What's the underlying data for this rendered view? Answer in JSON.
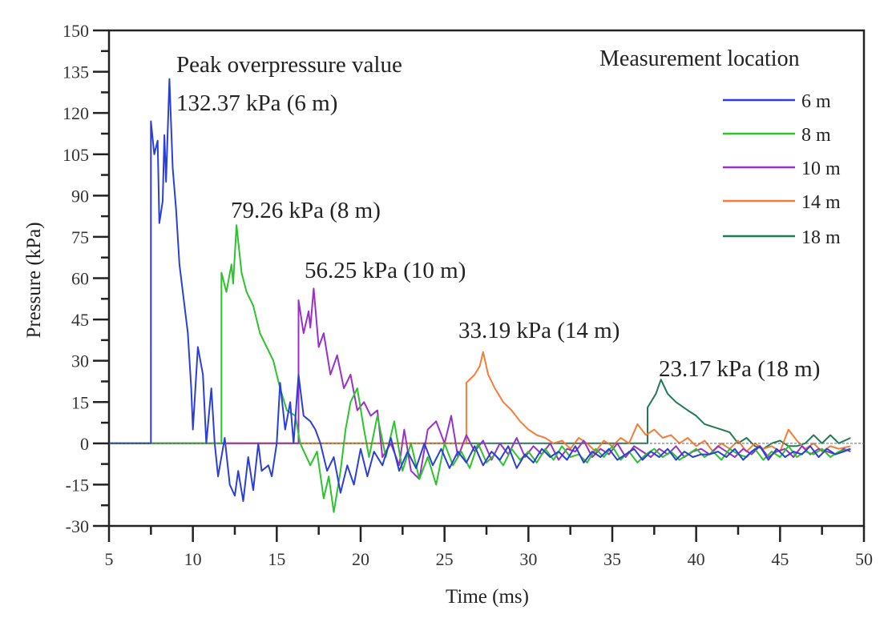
{
  "chart_data": {
    "type": "line",
    "xlabel": "Time (ms)",
    "ylabel": "Pressure (kPa)",
    "xlim": [
      5,
      50
    ],
    "ylim": [
      -30,
      150
    ],
    "xticks": [
      5,
      10,
      15,
      20,
      25,
      30,
      35,
      40,
      45,
      50
    ],
    "yticks": [
      -30,
      -15,
      0,
      15,
      30,
      45,
      60,
      75,
      90,
      105,
      120,
      135,
      150
    ],
    "grid": false,
    "legend": {
      "title": "Measurement location",
      "placement": "top-right"
    },
    "annotations": [
      {
        "text": "Peak overpressure value"
      },
      {
        "text": "132.37 kPa (6 m)"
      },
      {
        "text": "79.26 kPa (8 m)"
      },
      {
        "text": "56.25 kPa (10 m)"
      },
      {
        "text": "33.19 kPa (14 m)"
      },
      {
        "text": "23.17 kPa (18 m)"
      }
    ],
    "series": [
      {
        "name": "6 m",
        "color": "#2b3fd6",
        "x": [
          5,
          7.5,
          7.5,
          7.7,
          7.9,
          8.0,
          8.2,
          8.3,
          8.4,
          8.6,
          8.8,
          9.0,
          9.2,
          9.5,
          9.7,
          9.9,
          10.0,
          10.3,
          10.6,
          10.8,
          11.1,
          11.3,
          11.5,
          11.9,
          12.2,
          12.5,
          12.7,
          13.0,
          13.3,
          13.6,
          13.9,
          14.1,
          14.5,
          14.7,
          15.0,
          15.2,
          15.5,
          15.8,
          16.0,
          16.3,
          16.6,
          17.0,
          17.3,
          17.6,
          18.0,
          18.4,
          18.8,
          19.2,
          19.6,
          20.0,
          20.4,
          20.8,
          21.3,
          21.8,
          22.3,
          22.8,
          23.3,
          23.8,
          24.3,
          24.8,
          25.3,
          25.8,
          26.3,
          26.8,
          27.3,
          27.8,
          28.3,
          28.8,
          29.3,
          29.8,
          30.3,
          30.8,
          31.3,
          31.8,
          32.3,
          32.8,
          33.3,
          33.8,
          34.3,
          34.8,
          35.3,
          35.8,
          36.3,
          36.8,
          37.3,
          37.8,
          38.3,
          38.8,
          39.3,
          39.8,
          40.3,
          40.8,
          41.3,
          41.8,
          42.3,
          42.8,
          43.3,
          43.8,
          44.3,
          44.8,
          45.3,
          45.8,
          46.3,
          46.8,
          47.3,
          47.8,
          48.3,
          48.8,
          49.2
        ],
        "y": [
          0,
          0,
          117,
          105,
          110,
          80,
          88,
          112,
          95,
          132.37,
          100,
          85,
          65,
          50,
          40,
          20,
          5,
          35,
          25,
          0,
          20,
          0,
          -12,
          2,
          -15,
          -19,
          -10,
          -21,
          -5,
          -17,
          0,
          -10,
          -8,
          -12,
          0,
          22,
          5,
          15,
          0,
          25,
          10,
          8,
          5,
          0,
          -10,
          -5,
          -18,
          -8,
          -15,
          -2,
          -12,
          -3,
          -8,
          2,
          -10,
          -3,
          -9,
          0,
          -8,
          -2,
          -9,
          -3,
          -7,
          -1,
          -8,
          -3,
          -6,
          -1,
          -9,
          -4,
          -7,
          -2,
          -5,
          -3,
          -6,
          -1,
          -7,
          -3,
          -5,
          -2,
          -6,
          -4,
          -2,
          -6,
          -3,
          -5,
          -2,
          -6,
          -3,
          -5,
          -4,
          -4,
          -3,
          -5,
          -2,
          -6,
          -3,
          -1,
          -6,
          -2,
          -5,
          -3,
          -4,
          -1,
          -5,
          -2,
          -4,
          -3,
          -2
        ]
      },
      {
        "name": "8 m",
        "color": "#2bc42b",
        "x": [
          5,
          11.7,
          11.7,
          12.0,
          12.3,
          12.4,
          12.6,
          12.9,
          13.2,
          13.6,
          14.0,
          14.4,
          14.8,
          15.2,
          15.6,
          16.1,
          16.4,
          17.0,
          17.4,
          17.8,
          18.1,
          18.4,
          18.8,
          19.1,
          19.4,
          19.8,
          20.2,
          20.5,
          21.0,
          21.5,
          22.0,
          22.5,
          23.0,
          23.5,
          24.0,
          24.5,
          25.0,
          25.5,
          26.0,
          26.5,
          27.0,
          27.5,
          28.0,
          28.5,
          29.0,
          29.5,
          30.0,
          30.5,
          31.0,
          31.5,
          32.0,
          32.5,
          33.0,
          33.5,
          34.0,
          34.5,
          35.0,
          35.5,
          36.0,
          36.5,
          37.0,
          37.5,
          38.0,
          38.5,
          39.0,
          39.5,
          40.0,
          40.5,
          41.0,
          41.5,
          42.0,
          42.5,
          43.0,
          43.5,
          44.0,
          44.5,
          45.0,
          45.5,
          46.0,
          46.5,
          47.0,
          47.5,
          48.0,
          48.5,
          49.2
        ],
        "y": [
          0,
          0,
          62,
          55,
          65,
          58,
          79.26,
          62,
          55,
          50,
          40,
          35,
          30,
          20,
          12,
          10,
          0,
          -8,
          -3,
          -20,
          -12,
          -25,
          -10,
          5,
          15,
          20,
          5,
          -5,
          10,
          -5,
          8,
          -10,
          0,
          -13,
          -5,
          -15,
          0,
          -8,
          -3,
          -9,
          0,
          -7,
          -4,
          -8,
          -2,
          -6,
          -3,
          -7,
          -2,
          -6,
          -1,
          -5,
          -4,
          -7,
          -2,
          -5,
          -1,
          -6,
          -3,
          -7,
          -4,
          -2,
          -5,
          -3,
          -6,
          -4,
          -2,
          -5,
          -3,
          -6,
          -2,
          -4,
          -5,
          -2,
          -6,
          -3,
          -5,
          -1,
          -5,
          -3,
          -4,
          -2,
          -5,
          -3,
          -2
        ]
      },
      {
        "name": "10 m",
        "color": "#9b30c8",
        "x": [
          5,
          16.3,
          16.3,
          16.6,
          16.9,
          17.0,
          17.2,
          17.5,
          17.8,
          18.2,
          18.6,
          19.0,
          19.4,
          19.8,
          20.2,
          20.6,
          21.0,
          21.3,
          21.8,
          22.3,
          22.6,
          23.0,
          23.5,
          24.0,
          24.5,
          25.0,
          25.4,
          25.8,
          26.3,
          26.8,
          27.3,
          27.8,
          28.3,
          28.8,
          29.3,
          29.8,
          30.3,
          30.8,
          31.3,
          31.8,
          32.3,
          32.8,
          33.3,
          33.8,
          34.3,
          34.8,
          35.3,
          35.8,
          36.3,
          36.8,
          37.3,
          37.8,
          38.3,
          38.8,
          39.3,
          39.8,
          40.3,
          40.8,
          41.3,
          41.8,
          42.3,
          42.8,
          43.3,
          43.8,
          44.3,
          44.8,
          45.3,
          45.8,
          46.3,
          46.8,
          47.3,
          47.8,
          48.3,
          48.8,
          49.2
        ],
        "y": [
          0,
          0,
          52,
          40,
          48,
          42,
          56.25,
          35,
          40,
          25,
          32,
          20,
          25,
          12,
          15,
          10,
          12,
          -5,
          0,
          -8,
          5,
          -10,
          -13,
          5,
          8,
          0,
          10,
          -5,
          3,
          -3,
          1,
          -6,
          0,
          -4,
          2,
          -5,
          -1,
          -4,
          0,
          -6,
          -2,
          -3,
          1,
          -5,
          -2,
          -4,
          0,
          -5,
          -1,
          -3,
          -5,
          -2,
          -4,
          -1,
          -5,
          -3,
          -2,
          -4,
          -1,
          -3,
          -5,
          -2,
          -4,
          -1,
          -5,
          -3,
          -2,
          -5,
          -1,
          -4,
          -2,
          -3,
          -4,
          -2,
          -3
        ]
      },
      {
        "name": "14 m",
        "color": "#f57c3a",
        "x": [
          5,
          26.3,
          26.3,
          26.8,
          27.1,
          27.3,
          27.6,
          28.0,
          28.5,
          29.0,
          29.5,
          30.0,
          30.5,
          31.0,
          31.5,
          32.0,
          32.5,
          33.0,
          33.5,
          34.0,
          34.5,
          35.0,
          35.5,
          36.0,
          36.5,
          37.0,
          37.5,
          38.0,
          38.5,
          39.0,
          39.5,
          40.0,
          40.5,
          41.0,
          41.5,
          42.0,
          42.5,
          43.0,
          43.5,
          44.0,
          44.5,
          45.0,
          45.5,
          46.0,
          46.5,
          47.0,
          47.5,
          48.0,
          48.5,
          49.2
        ],
        "y": [
          0,
          0,
          22,
          25,
          28,
          33.19,
          25,
          20,
          15,
          12,
          8,
          5,
          3,
          2,
          0,
          1,
          -2,
          2,
          0,
          -3,
          1,
          -1,
          2,
          0,
          7,
          3,
          5,
          2,
          3,
          0,
          2,
          -1,
          1,
          -3,
          0,
          -2,
          1,
          -3,
          0,
          -2,
          -1,
          -3,
          5,
          1,
          -2,
          0,
          -3,
          -1,
          -2,
          -1
        ]
      },
      {
        "name": "18 m",
        "color": "#1f7a55",
        "x": [
          5,
          37.1,
          37.1,
          37.6,
          37.9,
          38.3,
          38.8,
          39.5,
          40.0,
          40.5,
          41.5,
          42.0,
          42.5,
          43.0,
          43.5,
          44.0,
          44.5,
          45.0,
          45.5,
          46.0,
          46.5,
          47.0,
          47.5,
          48.0,
          48.5,
          49.2
        ],
        "y": [
          0,
          0,
          13,
          18,
          23.17,
          18,
          15,
          12,
          10,
          7,
          5,
          4,
          0,
          2,
          -1,
          -2,
          0,
          1,
          -1,
          -1,
          0,
          3,
          0,
          3,
          0,
          2
        ]
      }
    ]
  }
}
